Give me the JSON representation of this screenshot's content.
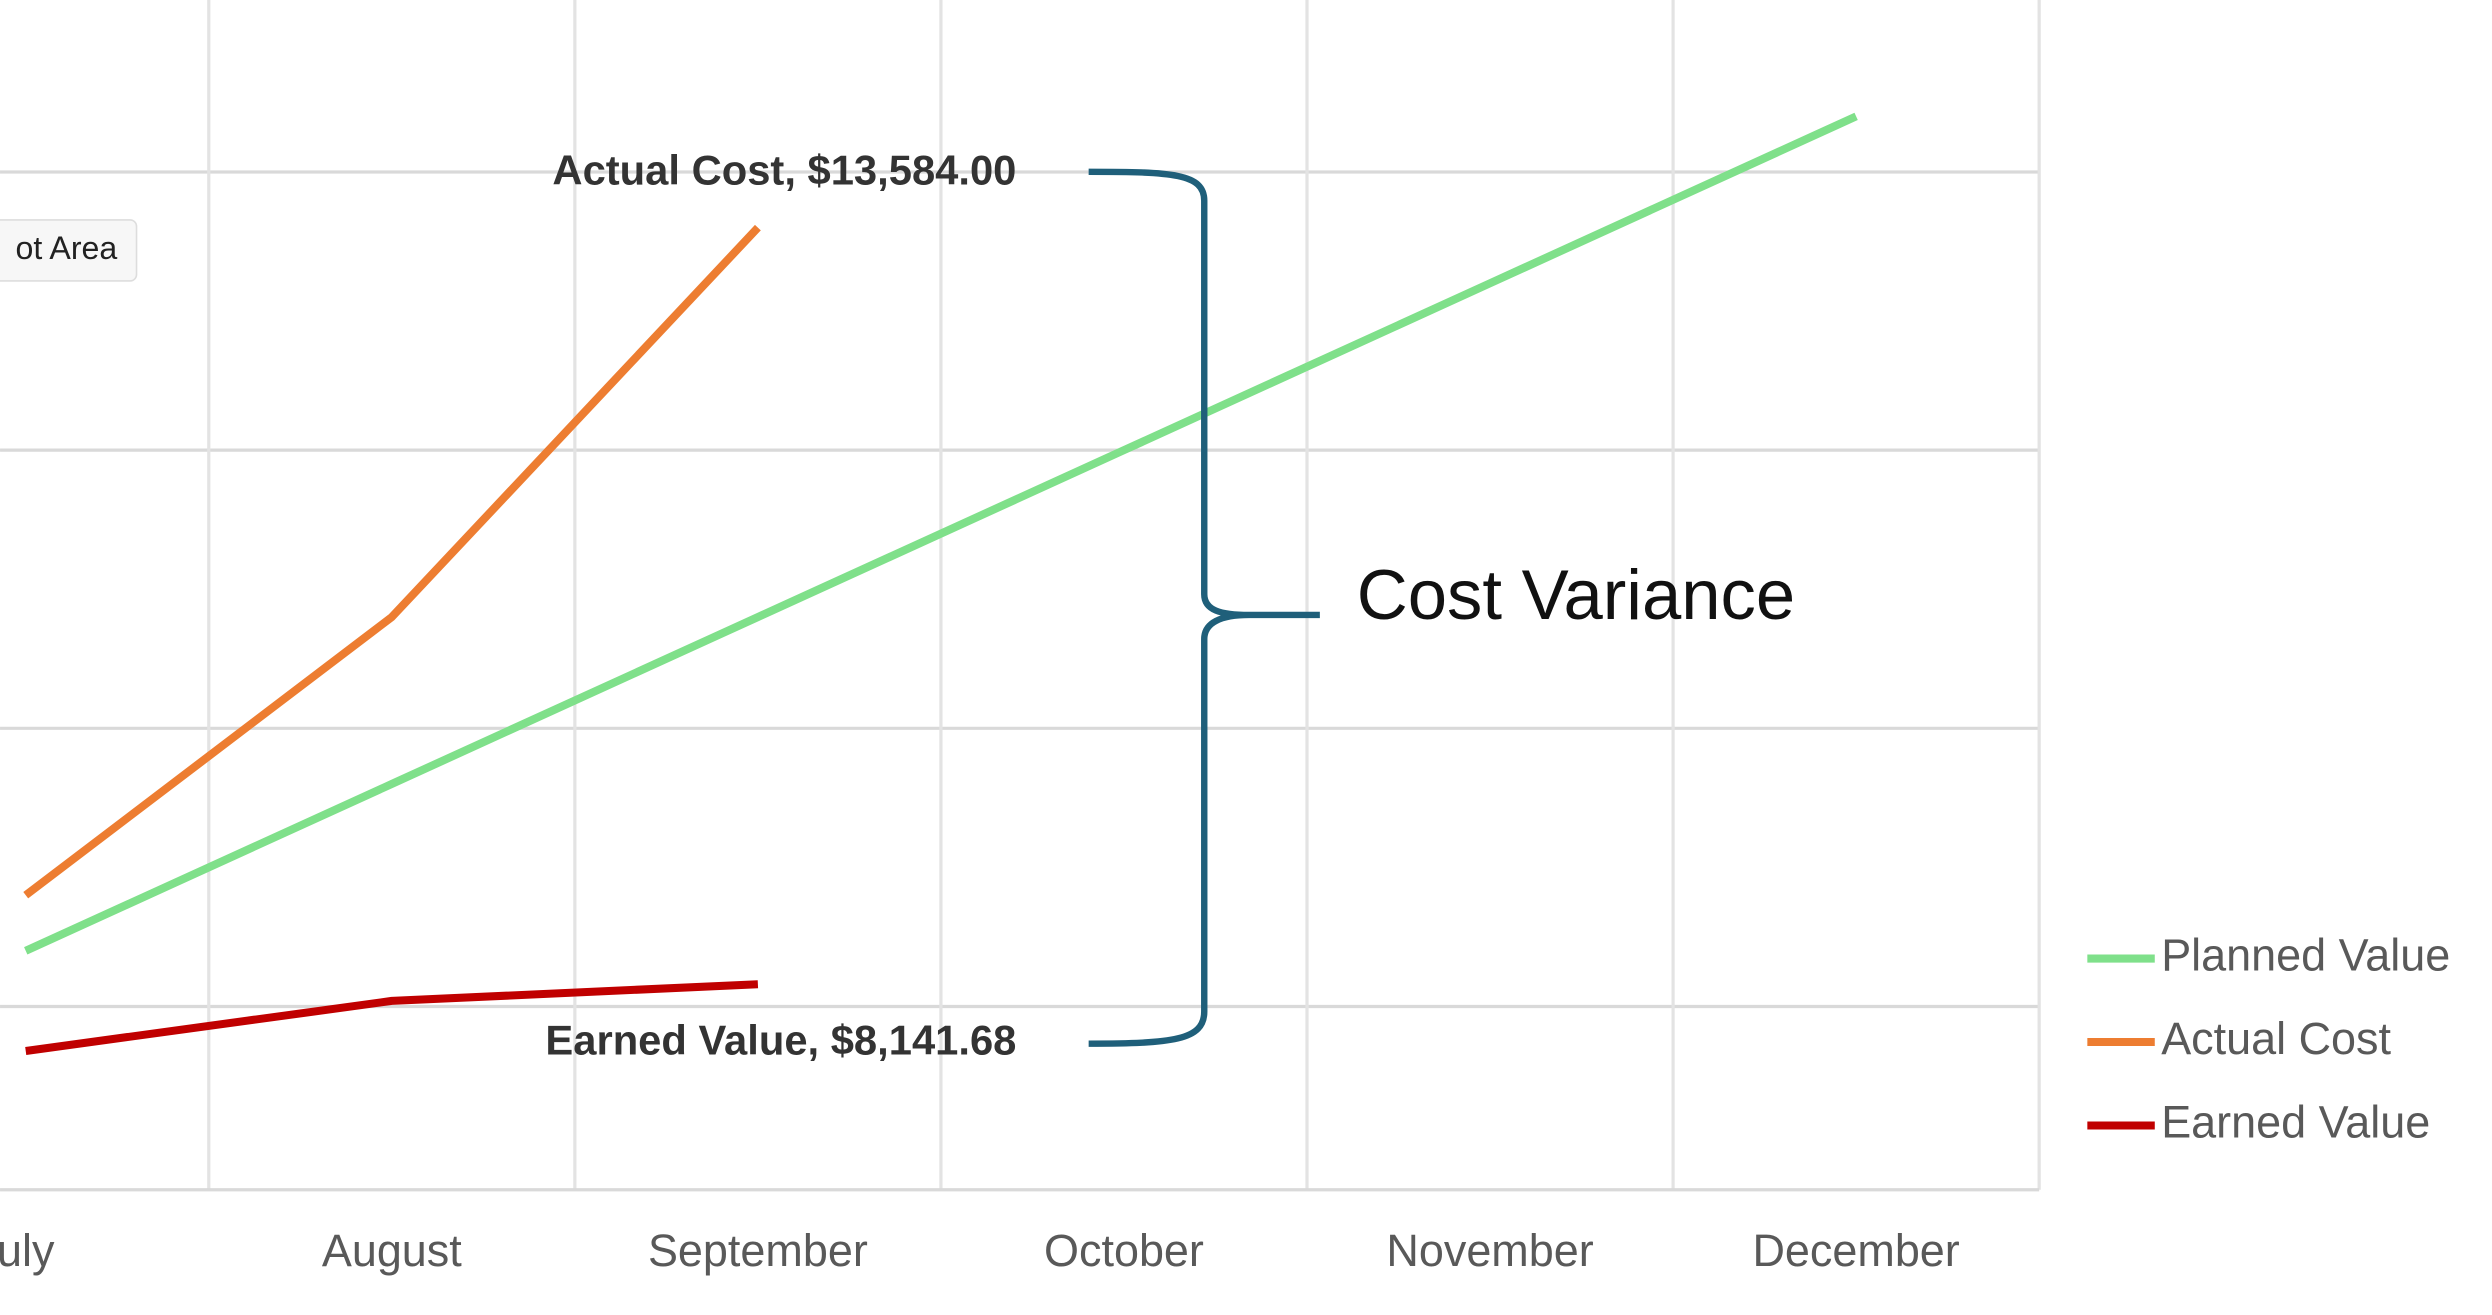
{
  "chart_data": {
    "type": "line",
    "categories": [
      "uly",
      "August",
      "September",
      "October",
      "November",
      "December"
    ],
    "series": [
      {
        "name": "Planned Value",
        "color": "#7fe08a",
        "values": [
          6000,
          9000,
          12000,
          15000,
          18000,
          21000
        ]
      },
      {
        "name": "Actual Cost",
        "color": "#ed7d31",
        "values": [
          7000,
          12000,
          19000,
          null,
          null,
          null
        ]
      },
      {
        "name": "Earned Value",
        "color": "#c00000",
        "values": [
          4200,
          5100,
          5400,
          null,
          null,
          null
        ]
      }
    ],
    "ylim": [
      1705,
      23092
    ],
    "yticks": [
      5000,
      10000,
      15000,
      20000
    ],
    "grid": true,
    "legend": "right",
    "annotations": {
      "actual_cost": "Actual Cost,  $13,584.00",
      "earned_value": "Earned Value, $8,141.68",
      "cost_variance": "Cost Variance"
    },
    "tooltip": "ot Area"
  }
}
